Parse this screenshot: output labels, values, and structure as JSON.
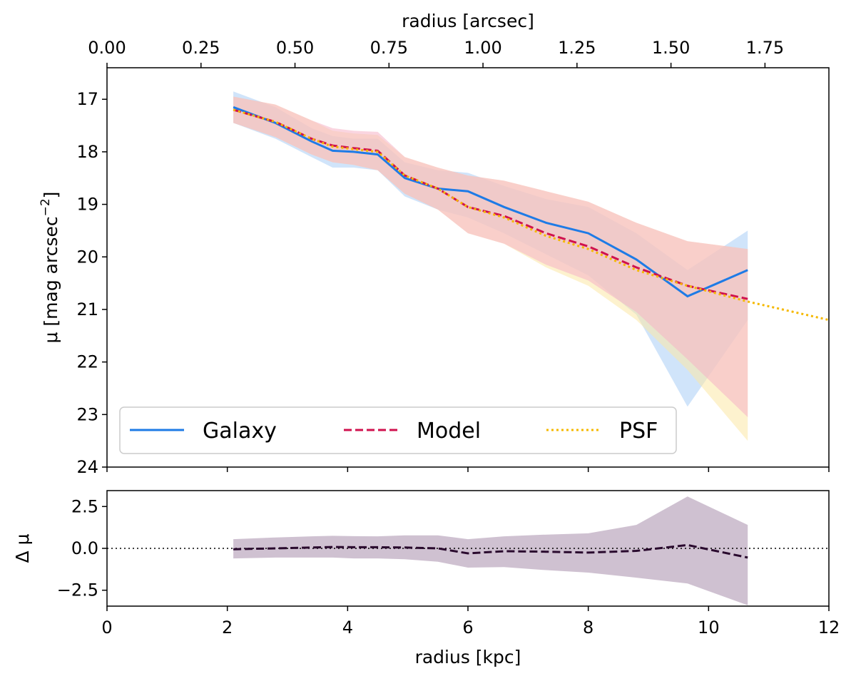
{
  "colors": {
    "galaxy": "#1e7be6",
    "model": "#d0124e",
    "psf": "#f5b800",
    "residual": "#2a0a2e",
    "galaxy_band": "#aacdf5",
    "model_band": "#f6b3c6",
    "psf_band": "#fce7a6",
    "residual_band": "#c7b6c9"
  },
  "chart_data": [
    {
      "type": "line",
      "x_units": "kpc",
      "top_axis": {
        "label": "radius [arcsec]",
        "kpc_per_arcsec": 6.25,
        "range": [
          0,
          1.92
        ],
        "ticks": [
          0,
          0.25,
          0.5,
          0.75,
          1.0,
          1.25,
          1.5,
          1.75
        ],
        "tick_labels": [
          "0.00",
          "0.25",
          "0.50",
          "0.75",
          "1.00",
          "1.25",
          "1.50",
          "1.75"
        ]
      },
      "ylabel_main": "μ [mag arcsec",
      "ylabel_sup": "−2",
      "xlim": [
        0,
        12
      ],
      "ylim": [
        24,
        16.4
      ],
      "y_inverted": true,
      "yticks": [
        17,
        18,
        19,
        20,
        21,
        22,
        23,
        24
      ],
      "ytick_labels": [
        "17",
        "18",
        "19",
        "20",
        "21",
        "22",
        "23",
        "24"
      ],
      "legend": {
        "placement": "lower-left",
        "ncol": 3
      },
      "series": [
        {
          "name": "Galaxy",
          "key": "galaxy",
          "linestyle": "solid",
          "x": [
            2.1,
            2.8,
            3.4,
            3.75,
            4.1,
            4.5,
            4.95,
            5.5,
            6.0,
            6.6,
            7.3,
            8.0,
            8.8,
            9.65,
            10.65
          ],
          "y": [
            17.15,
            17.45,
            17.8,
            17.98,
            18.0,
            18.05,
            18.5,
            18.7,
            18.75,
            19.05,
            19.35,
            19.55,
            20.05,
            20.75,
            20.25
          ],
          "band_upper": [
            16.85,
            17.15,
            17.55,
            17.7,
            17.75,
            17.75,
            18.2,
            18.35,
            18.4,
            18.65,
            18.9,
            19.05,
            19.55,
            20.25,
            19.5
          ],
          "band_lower": [
            17.45,
            17.75,
            18.1,
            18.3,
            18.3,
            18.35,
            18.85,
            19.1,
            19.25,
            19.55,
            19.95,
            20.35,
            21.1,
            22.85,
            21.2
          ]
        },
        {
          "name": "Model",
          "key": "model",
          "linestyle": "dashed",
          "x": [
            2.1,
            2.8,
            3.4,
            3.75,
            4.1,
            4.5,
            4.95,
            5.5,
            6.0,
            6.6,
            7.3,
            8.0,
            8.8,
            9.65,
            10.65
          ],
          "y": [
            17.2,
            17.43,
            17.75,
            17.88,
            17.93,
            17.98,
            18.45,
            18.7,
            19.05,
            19.22,
            19.55,
            19.8,
            20.2,
            20.55,
            20.8
          ],
          "band_upper": [
            16.95,
            17.1,
            17.4,
            17.55,
            17.6,
            17.62,
            18.1,
            18.3,
            18.45,
            18.55,
            18.75,
            18.95,
            19.35,
            19.7,
            19.85
          ],
          "band_lower": [
            17.45,
            17.72,
            18.05,
            18.2,
            18.25,
            18.35,
            18.8,
            19.1,
            19.55,
            19.75,
            20.15,
            20.45,
            21.05,
            21.95,
            23.05
          ]
        },
        {
          "name": "PSF",
          "key": "psf",
          "linestyle": "dotted",
          "x": [
            2.1,
            2.8,
            3.4,
            3.75,
            4.1,
            4.5,
            4.95,
            5.5,
            6.0,
            6.6,
            7.3,
            8.0,
            8.8,
            9.65,
            10.65,
            12.0
          ],
          "y": [
            17.2,
            17.43,
            17.75,
            17.9,
            17.95,
            18.0,
            18.45,
            18.7,
            19.05,
            19.25,
            19.6,
            19.85,
            20.25,
            20.55,
            20.85,
            21.2
          ],
          "band_upper": [
            16.95,
            17.1,
            17.4,
            17.6,
            17.65,
            17.68,
            18.1,
            18.3,
            18.45,
            18.55,
            18.75,
            18.95,
            19.35,
            19.7,
            19.85,
            null
          ],
          "band_lower": [
            17.45,
            17.72,
            18.05,
            18.2,
            18.25,
            18.35,
            18.8,
            19.1,
            19.55,
            19.75,
            20.2,
            20.55,
            21.2,
            22.15,
            23.5,
            null
          ]
        }
      ]
    },
    {
      "type": "line",
      "xlabel": "radius [kpc]",
      "ylabel": "Δ μ",
      "xlim": [
        0,
        12
      ],
      "ylim": [
        -3.45,
        3.45
      ],
      "xticks": [
        0,
        2,
        4,
        6,
        8,
        10,
        12
      ],
      "xtick_labels": [
        "0",
        "2",
        "4",
        "6",
        "8",
        "10",
        "12"
      ],
      "yticks": [
        2.5,
        0.0,
        -2.5
      ],
      "ytick_labels": [
        "2.5",
        "0.0",
        "−2.5"
      ],
      "reference_line": 0,
      "series": [
        {
          "key": "residual",
          "linestyle": "dashed",
          "x": [
            2.1,
            2.8,
            3.4,
            3.75,
            4.1,
            4.5,
            4.95,
            5.5,
            6.0,
            6.6,
            7.3,
            8.0,
            8.8,
            9.65,
            10.65
          ],
          "y": [
            -0.05,
            0.0,
            0.05,
            0.08,
            0.07,
            0.07,
            0.05,
            0.0,
            -0.3,
            -0.17,
            -0.2,
            -0.25,
            -0.15,
            0.2,
            -0.55
          ],
          "band_upper": [
            0.55,
            0.65,
            0.72,
            0.75,
            0.73,
            0.72,
            0.78,
            0.78,
            0.55,
            0.72,
            0.82,
            0.9,
            1.4,
            3.1,
            1.4
          ],
          "band_lower": [
            -0.6,
            -0.55,
            -0.55,
            -0.55,
            -0.6,
            -0.6,
            -0.65,
            -0.8,
            -1.15,
            -1.12,
            -1.3,
            -1.45,
            -1.75,
            -2.1,
            -3.4
          ]
        }
      ]
    }
  ]
}
